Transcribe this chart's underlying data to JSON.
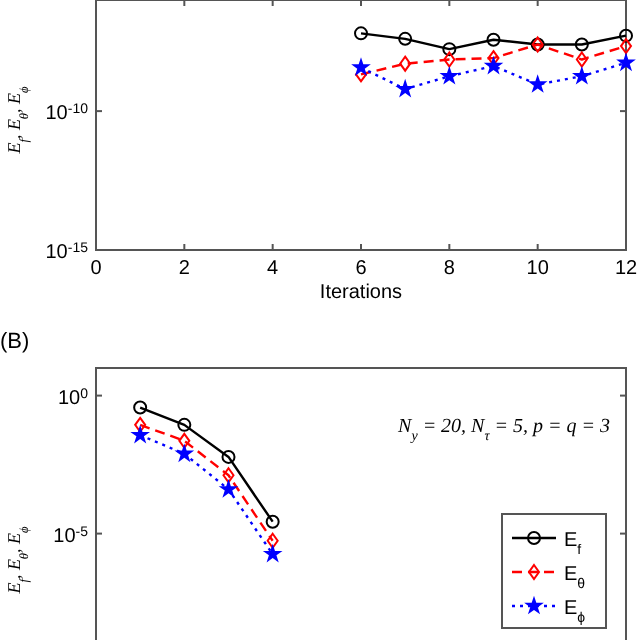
{
  "chart_data": [
    {
      "type": "line",
      "xlabel": "Iterations",
      "ylabel": "E$_{f}$, E$_{θ}$, E$_{ϕ}$",
      "log": true,
      "xlim": [
        0,
        12
      ],
      "xticks": [
        0,
        2,
        4,
        6,
        8,
        10,
        12
      ],
      "ylim": [
        1e-15,
        1e-06
      ],
      "yticks": [
        {
          "value": 1e-15,
          "label": "10$^{-15}$"
        },
        {
          "value": 1e-10,
          "label": "10$^{-10}$"
        }
      ],
      "grid": false,
      "legend": false,
      "x": [
        6,
        7,
        8,
        9,
        10,
        11,
        12
      ],
      "series": [
        {
          "color": "#000000",
          "marker": "circle",
          "line_style": "solid",
          "values": [
            6.3e-08,
            4e-08,
            1.7e-08,
            3.7e-08,
            2.5e-08,
            2.5e-08,
            5.2e-08
          ]
        },
        {
          "color": "#ff0000",
          "marker": "diamond",
          "line_style": "dashed",
          "values": [
            2.1e-09,
            5.1e-09,
            7.2e-09,
            8.1e-09,
            2.5e-08,
            7.2e-09,
            2.2e-08
          ]
        },
        {
          "color": "#0000ff",
          "marker": "star",
          "line_style": "dotted",
          "values": [
            3.7e-09,
            6.2e-10,
            1.8e-09,
            4.2e-09,
            9.1e-10,
            1.8e-09,
            5.5e-09
          ]
        }
      ]
    },
    {
      "type": "line",
      "ylabel": "E$_{f}$, E$_{θ}$, E$_{ϕ}$",
      "log": true,
      "xlim": [
        0,
        12
      ],
      "ylim": [
        1e-09,
        10.0
      ],
      "yticks": [
        {
          "value": 1.0,
          "label": "10$^{0}$"
        },
        {
          "value": 1e-05,
          "label": "10$^{-5}$"
        }
      ],
      "tick_labels": "y",
      "grid": false,
      "legend": "right",
      "annotations": [
        "(B)",
        {
          "text": "N$_{y}$ = 20, N$_{τ}$ = 5, p = q = 3"
        }
      ],
      "x": [
        1,
        2,
        3,
        4
      ],
      "series": [
        {
          "name": "E$_{f}$",
          "color": "#000000",
          "marker": "circle",
          "line_style": "solid",
          "values": [
            0.37,
            0.087,
            0.006,
            2.7e-05
          ]
        },
        {
          "name": "E$_{θ}$",
          "color": "#ff0000",
          "marker": "diamond",
          "line_style": "dashed",
          "values": [
            0.087,
            0.023,
            0.0013,
            5.5e-06
          ]
        },
        {
          "name": "E$_{ϕ}$",
          "color": "#0000ff",
          "marker": "star",
          "line_style": "dotted",
          "values": [
            0.037,
            0.0078,
            0.0004,
            1.8e-06
          ]
        }
      ]
    }
  ]
}
